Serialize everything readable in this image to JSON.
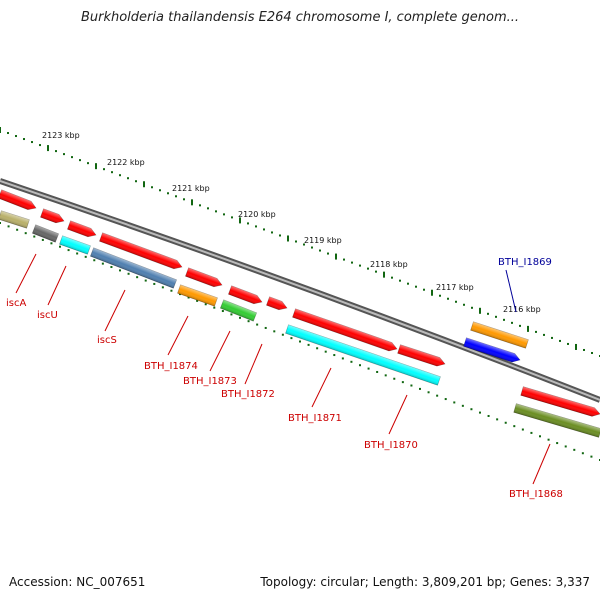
{
  "title": "Burkholderia thailandensis E264 chromosome I, complete genom...",
  "footer": {
    "accession": "Accession: NC_007651",
    "topology": "Topology: circular; Length: 3,809,201 bp; Genes: 3,337"
  },
  "scale_labels": [
    "2123 kbp",
    "2122 kbp",
    "2121 kbp",
    "2120 kbp",
    "2119 kbp",
    "2118 kbp",
    "2117 kbp",
    "2116 kbp"
  ],
  "colors": {
    "red": "#ff0000",
    "cyan": "#00ffff",
    "steelblue": "#4f7fb0",
    "orange": "#ff9900",
    "green": "#33cc33",
    "gray": "#666666",
    "khaki": "#b9b06a",
    "olive": "#6b8e23",
    "blue": "#0000ff",
    "label_red": "#cc0000",
    "label_blue": "#000099",
    "ruler_green": "#116611",
    "backbone": "#888888"
  },
  "genes": [
    {
      "name": "iscA",
      "label_color": "label_red"
    },
    {
      "name": "iscU",
      "label_color": "label_red"
    },
    {
      "name": "iscS",
      "label_color": "label_red"
    },
    {
      "name": "BTH_I1874",
      "label_color": "label_red"
    },
    {
      "name": "BTH_I1873",
      "label_color": "label_red"
    },
    {
      "name": "BTH_I1872",
      "label_color": "label_red"
    },
    {
      "name": "BTH_I1871",
      "label_color": "label_red"
    },
    {
      "name": "BTH_I1870",
      "label_color": "label_red"
    },
    {
      "name": "BTH_I1869",
      "label_color": "label_blue"
    },
    {
      "name": "BTH_I1868",
      "label_color": "label_red"
    }
  ]
}
